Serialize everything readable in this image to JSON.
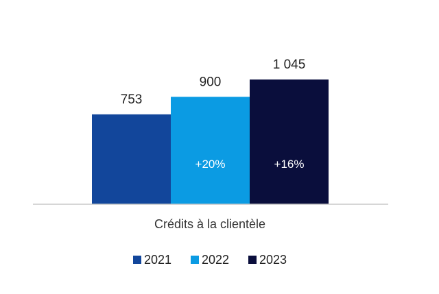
{
  "chart_data": {
    "type": "bar",
    "categories": [
      "Crédits à la clientèle"
    ],
    "series": [
      {
        "name": "2021",
        "values": [
          753
        ],
        "value_label": "753",
        "change_label": "",
        "color": "#12469b"
      },
      {
        "name": "2022",
        "values": [
          900
        ],
        "value_label": "900",
        "change_label": "+20%",
        "color": "#0b9be3"
      },
      {
        "name": "2023",
        "values": [
          1045
        ],
        "value_label": "1 045",
        "change_label": "+16%",
        "color": "#0a0e3c"
      }
    ],
    "ylim": [
      0,
      1045
    ],
    "grid": false,
    "legend_position": "bottom",
    "axis_color": "#c8c8c8"
  }
}
